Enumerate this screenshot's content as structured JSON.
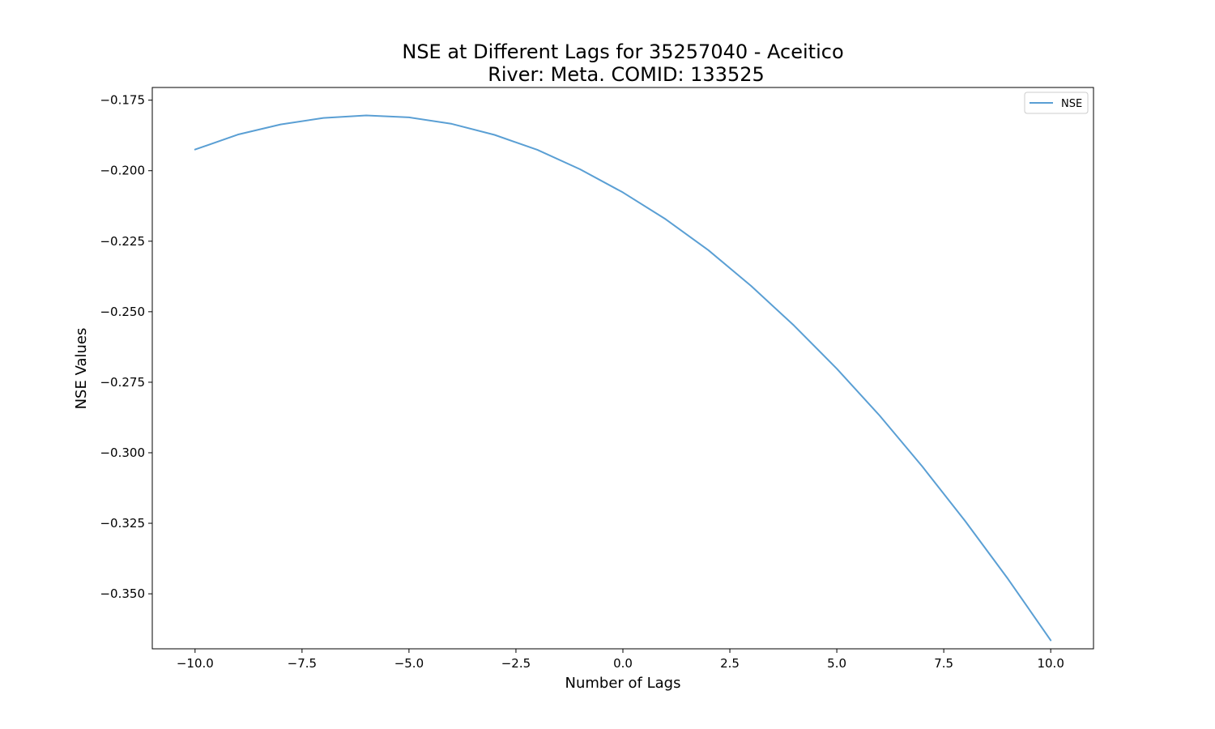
{
  "chart_data": {
    "type": "line",
    "title_line1": "NSE at Different Lags for 35257040 - Aceitico",
    "title_line2": "River: Meta. COMID: 133525",
    "xlabel": "Number of Lags",
    "ylabel": "NSE Values",
    "xlim": [
      -11,
      11
    ],
    "ylim": [
      -0.3695,
      -0.1705
    ],
    "xticks": [
      -10.0,
      -7.5,
      -5.0,
      -2.5,
      0.0,
      2.5,
      5.0,
      7.5,
      10.0
    ],
    "xtick_labels": [
      "−10.0",
      "−7.5",
      "−5.0",
      "−2.5",
      "0.0",
      "2.5",
      "5.0",
      "7.5",
      "10.0"
    ],
    "yticks": [
      -0.175,
      -0.2,
      -0.225,
      -0.25,
      -0.275,
      -0.3,
      -0.325,
      -0.35
    ],
    "ytick_labels": [
      "−0.175",
      "−0.200",
      "−0.225",
      "−0.250",
      "−0.275",
      "−0.300",
      "−0.325",
      "−0.350"
    ],
    "grid": false,
    "legend_position": "top-right",
    "series": [
      {
        "name": "NSE",
        "color": "#5a9fd4",
        "x": [
          -10,
          -9,
          -8,
          -7,
          -6,
          -5,
          -4,
          -3,
          -2,
          -1,
          0,
          1,
          2,
          3,
          4,
          5,
          6,
          7,
          8,
          9,
          10
        ],
        "y": [
          -0.1925,
          -0.1872,
          -0.1836,
          -0.1813,
          -0.1804,
          -0.1811,
          -0.1834,
          -0.1873,
          -0.1926,
          -0.1995,
          -0.2077,
          -0.2172,
          -0.2282,
          -0.2409,
          -0.2549,
          -0.2702,
          -0.2868,
          -0.3049,
          -0.3242,
          -0.3447,
          -0.3665
        ]
      }
    ]
  }
}
